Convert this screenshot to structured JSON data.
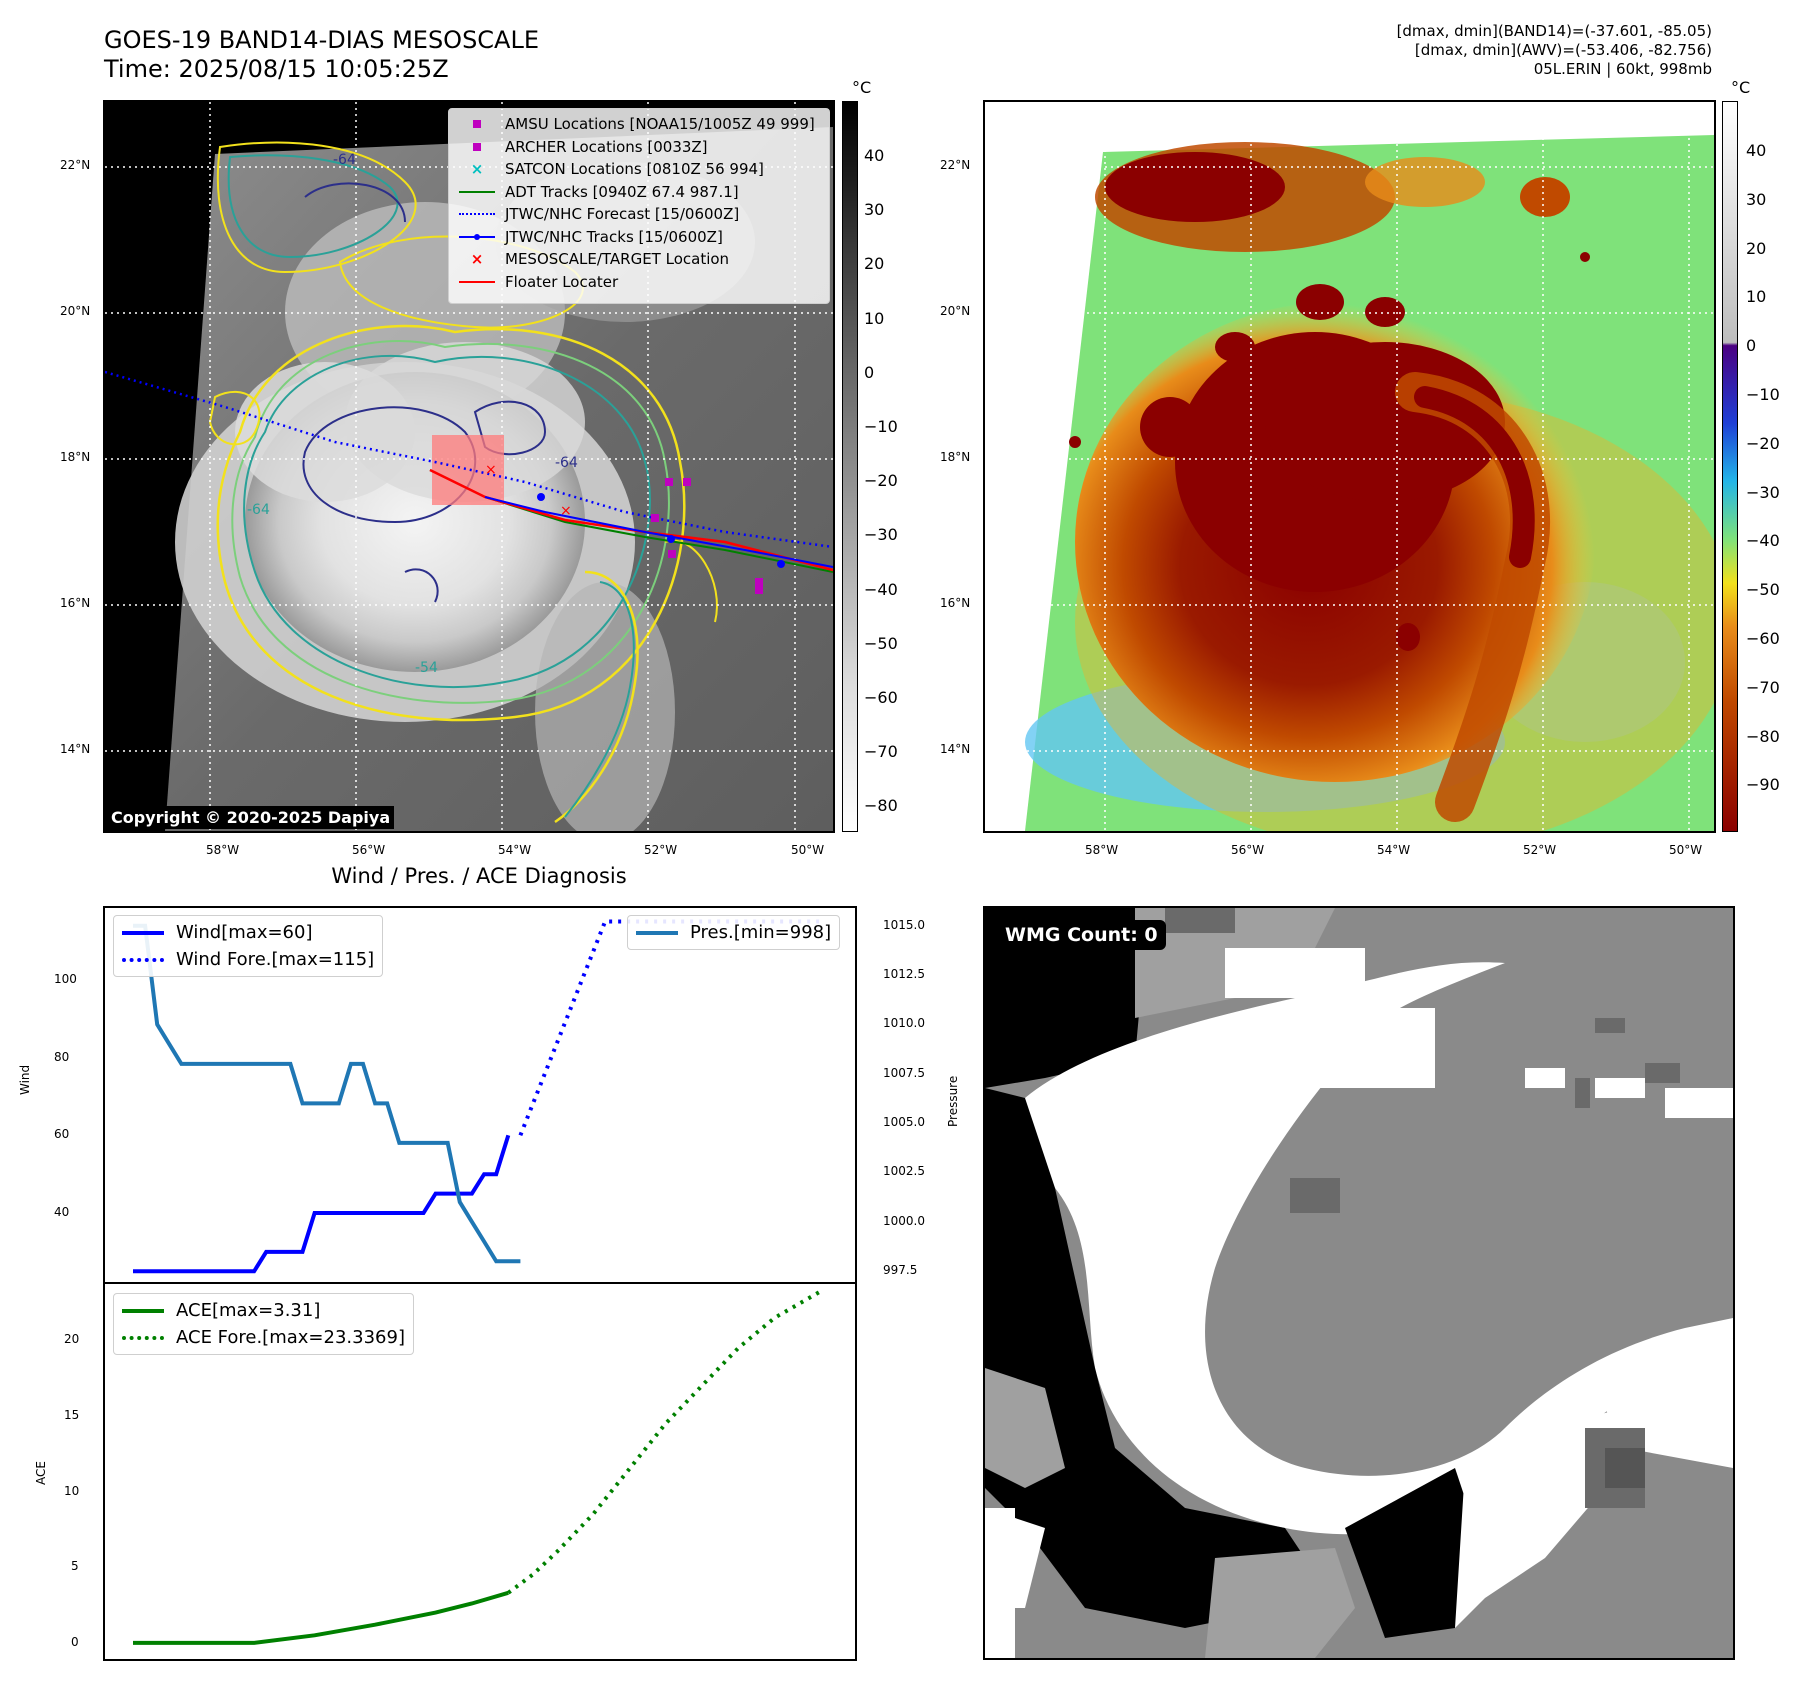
{
  "header": {
    "title_line1": "GOES-19 BAND14-DIAS MESOSCALE",
    "title_line2": "Time: 2025/08/15 10:05:25Z",
    "right_line1": "[dmax, dmin](BAND14)=(-37.601, -85.05)",
    "right_line2": "[dmax, dmin](AWV)=(-53.406, -82.756)",
    "right_line3": "05L.ERIN | 60kt, 998mb"
  },
  "map_axes": {
    "lat_labels": [
      "22°N",
      "20°N",
      "18°N",
      "16°N",
      "14°N"
    ],
    "lon_labels": [
      "58°W",
      "56°W",
      "54°W",
      "52°W",
      "50°W"
    ]
  },
  "ir_panel": {
    "colorbar_unit": "°C",
    "colorbar_ticks": [
      "40",
      "30",
      "20",
      "10",
      "0",
      "−10",
      "−20",
      "−30",
      "−40",
      "−50",
      "−60",
      "−70",
      "−80"
    ],
    "contour_labels": [
      "-64",
      "-64",
      "-54",
      "-64"
    ],
    "copyright": "Copyright © 2020-2025 Dapiya",
    "legend": [
      {
        "label": "AMSU Locations [NOAA15/1005Z 49 999]",
        "symbol": "square",
        "color": "#bf00bf"
      },
      {
        "label": "ARCHER Locations [0033Z]",
        "symbol": "square",
        "color": "#bf00bf"
      },
      {
        "label": "SATCON Locations [0810Z 56 994]",
        "symbol": "x",
        "color": "#00bfbf"
      },
      {
        "label": "ADT Tracks [0940Z 67.4 987.1]",
        "symbol": "line",
        "color": "#008000"
      },
      {
        "label": "JTWC/NHC Forecast [15/0600Z]",
        "symbol": "dotted",
        "color": "#0000ff"
      },
      {
        "label": "JTWC/NHC Tracks [15/0600Z]",
        "symbol": "line-dot",
        "color": "#0000ff"
      },
      {
        "label": "MESOSCALE/TARGET Location",
        "symbol": "x",
        "color": "#ff0000"
      },
      {
        "label": "Floater Locater",
        "symbol": "line",
        "color": "#ff0000"
      }
    ]
  },
  "awv_panel": {
    "colorbar_unit": "°C",
    "colorbar_ticks": [
      "40",
      "30",
      "20",
      "10",
      "0",
      "−10",
      "−20",
      "−30",
      "−40",
      "−50",
      "−60",
      "−70",
      "−80",
      "−90"
    ]
  },
  "wmg_panel": {
    "count_label": "WMG Count: 0"
  },
  "colors": {
    "wind": "#0000ff",
    "pressure": "#1f77b4",
    "ace": "#008000"
  },
  "chart_data": [
    {
      "type": "line",
      "title": "Wind / Pres. / ACE Diagnosis",
      "ylabel": "Wind",
      "ylabel_right": "Pressure",
      "ylim": [
        22,
        119
      ],
      "ylim_right": [
        996.9,
        1016.0
      ],
      "y_ticks": [
        40,
        60,
        80,
        100
      ],
      "y_ticks_right": [
        997.5,
        1000.0,
        1002.5,
        1005.0,
        1007.5,
        1010.0,
        1012.5,
        1015.0
      ],
      "x": [
        0,
        1,
        2,
        3,
        4,
        5,
        6,
        7,
        8,
        9,
        10,
        11,
        12,
        13,
        14,
        15,
        16,
        17,
        18,
        19,
        20,
        21,
        22,
        23,
        24,
        25,
        26,
        27,
        28,
        29,
        30,
        31,
        32,
        33,
        34,
        35,
        36,
        37,
        38,
        39,
        40,
        41,
        42,
        43,
        44,
        45,
        46,
        47,
        48,
        49,
        50,
        51,
        52,
        53,
        54,
        55,
        56,
        57
      ],
      "series": [
        {
          "name": "Wind[max=60]",
          "axis": "left",
          "style": "solid",
          "x": [
            0,
            1,
            2,
            3,
            4,
            5,
            6,
            7,
            8,
            9,
            10,
            11,
            12,
            13,
            14,
            15,
            16,
            17,
            18,
            19,
            20,
            21,
            22,
            23,
            24,
            25,
            26,
            27,
            28,
            29,
            30,
            31
          ],
          "values": [
            25,
            25,
            25,
            25,
            25,
            25,
            25,
            25,
            25,
            25,
            25,
            30,
            30,
            30,
            30,
            40,
            40,
            40,
            40,
            40,
            40,
            40,
            40,
            40,
            40,
            45,
            45,
            45,
            45,
            50,
            50,
            60
          ]
        },
        {
          "name": "Wind Fore.[max=115]",
          "axis": "left",
          "style": "dotted",
          "x": [
            32,
            39,
            57
          ],
          "values": [
            60,
            115,
            115
          ]
        },
        {
          "name": "Pres.[min=998]",
          "axis": "right",
          "style": "solid",
          "x": [
            0,
            1,
            2,
            3,
            4,
            5,
            6,
            7,
            8,
            9,
            10,
            11,
            12,
            13,
            14,
            15,
            16,
            17,
            18,
            19,
            20,
            21,
            22,
            23,
            24,
            25,
            26,
            27,
            28,
            29,
            30,
            31,
            32
          ],
          "values": [
            1015.0,
            1015.0,
            1010.0,
            1009.0,
            1008.0,
            1008.0,
            1008.0,
            1008.0,
            1008.0,
            1008.0,
            1008.0,
            1008.0,
            1008.0,
            1008.0,
            1006.0,
            1006.0,
            1006.0,
            1006.0,
            1008.0,
            1008.0,
            1006.0,
            1006.0,
            1004.0,
            1004.0,
            1004.0,
            1004.0,
            1004.0,
            1001.0,
            1000.0,
            999.0,
            998.0,
            998.0,
            998.0
          ]
        }
      ]
    },
    {
      "type": "line",
      "ylabel": "ACE",
      "ylim": [
        -1.2,
        23.8
      ],
      "y_ticks": [
        0,
        5,
        10,
        15,
        20
      ],
      "series": [
        {
          "name": "ACE[max=3.31]",
          "style": "solid",
          "x": [
            0,
            5,
            10,
            15,
            20,
            25,
            28,
            31
          ],
          "values": [
            0,
            0,
            0,
            0.5,
            1.2,
            2.0,
            2.6,
            3.31
          ]
        },
        {
          "name": "ACE Fore.[max=23.3369]",
          "style": "dotted",
          "x": [
            31,
            33,
            35,
            38,
            41,
            44,
            47,
            50,
            53,
            57
          ],
          "values": [
            3.31,
            4.5,
            6.0,
            8.5,
            11.5,
            14.5,
            17.0,
            19.5,
            21.5,
            23.3369
          ]
        }
      ]
    }
  ]
}
